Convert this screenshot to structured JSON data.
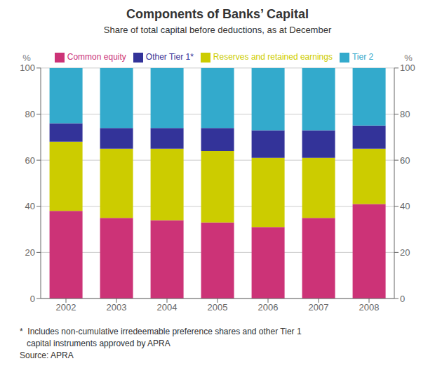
{
  "chart_data": {
    "type": "bar",
    "title": "Components of Banks’ Capital",
    "subtitle": "Share of total capital before deductions, as at December",
    "categories": [
      "2002",
      "2003",
      "2004",
      "2005",
      "2006",
      "2007",
      "2008"
    ],
    "series": [
      {
        "name": "Common equity",
        "color": "#cc3377",
        "values": [
          38,
          35,
          34,
          33,
          31,
          35,
          41
        ]
      },
      {
        "name": "Reserves and retained earnings",
        "color": "#cccc00",
        "values": [
          30,
          30,
          31,
          31,
          30,
          26,
          24
        ]
      },
      {
        "name": "Other Tier 1*",
        "color": "#333399",
        "values": [
          8,
          9,
          9,
          10,
          12,
          12,
          10
        ]
      },
      {
        "name": "Tier 2",
        "color": "#33aacc",
        "values": [
          24,
          26,
          26,
          26,
          27,
          27,
          25
        ]
      }
    ],
    "stacked": true,
    "ylabel": "%",
    "y2label": "%",
    "ylim": [
      0,
      100
    ],
    "yticks": [
      0,
      20,
      40,
      60,
      80,
      100
    ],
    "y2lim": [
      0,
      100
    ],
    "y2ticks": [
      0,
      20,
      40,
      60,
      80,
      100
    ],
    "grid": true,
    "legend": "top",
    "annotations": [
      "*  Includes non-cumulative irredeemable preference shares and other Tier 1",
      "   capital instruments approved by APRA",
      "Source: APRA"
    ]
  }
}
